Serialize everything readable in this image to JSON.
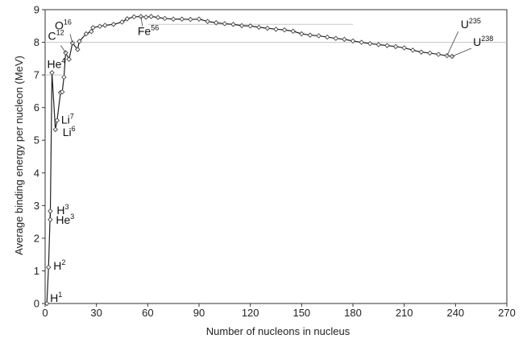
{
  "chart_data": {
    "type": "scatter",
    "title": "",
    "xlabel": "Number of nucleons in nucleus",
    "ylabel": "Average binding energy per nucleon (MeV)",
    "xlim": [
      0,
      270
    ],
    "ylim": [
      0,
      9
    ],
    "x_ticks": [
      "0",
      "30",
      "60",
      "90",
      "120",
      "150",
      "180",
      "210",
      "240",
      "270"
    ],
    "y_ticks": [
      "0",
      "1",
      "2",
      "3",
      "4",
      "5",
      "6",
      "7",
      "8",
      "9"
    ],
    "grid": false,
    "series": [
      {
        "points": [
          [
            1,
            0
          ],
          [
            2,
            1.11
          ],
          [
            3,
            2.83
          ],
          [
            3,
            2.57
          ],
          [
            4,
            7.07
          ],
          [
            6,
            5.33
          ],
          [
            7,
            5.61
          ],
          [
            9,
            6.46
          ],
          [
            10,
            6.48
          ],
          [
            11,
            6.93
          ],
          [
            12,
            7.68
          ],
          [
            14,
            7.48
          ],
          [
            16,
            7.98
          ],
          [
            19,
            7.78
          ],
          [
            20,
            8.03
          ],
          [
            24,
            8.26
          ],
          [
            27,
            8.33
          ],
          [
            28,
            8.45
          ],
          [
            32,
            8.49
          ],
          [
            35,
            8.52
          ],
          [
            40,
            8.55
          ],
          [
            45,
            8.62
          ],
          [
            48,
            8.72
          ],
          [
            52,
            8.78
          ],
          [
            56,
            8.79
          ],
          [
            59,
            8.77
          ],
          [
            62,
            8.79
          ],
          [
            66,
            8.76
          ],
          [
            70,
            8.73
          ],
          [
            75,
            8.71
          ],
          [
            80,
            8.71
          ],
          [
            85,
            8.7
          ],
          [
            90,
            8.71
          ],
          [
            95,
            8.64
          ],
          [
            100,
            8.6
          ],
          [
            105,
            8.57
          ],
          [
            110,
            8.55
          ],
          [
            115,
            8.51
          ],
          [
            120,
            8.5
          ],
          [
            125,
            8.46
          ],
          [
            130,
            8.43
          ],
          [
            135,
            8.4
          ],
          [
            140,
            8.38
          ],
          [
            145,
            8.34
          ],
          [
            150,
            8.26
          ],
          [
            155,
            8.22
          ],
          [
            160,
            8.2
          ],
          [
            165,
            8.16
          ],
          [
            170,
            8.12
          ],
          [
            175,
            8.09
          ],
          [
            180,
            8.04
          ],
          [
            185,
            8.0
          ],
          [
            190,
            7.96
          ],
          [
            195,
            7.93
          ],
          [
            200,
            7.9
          ],
          [
            205,
            7.87
          ],
          [
            210,
            7.83
          ],
          [
            215,
            7.76
          ],
          [
            220,
            7.7
          ],
          [
            225,
            7.67
          ],
          [
            230,
            7.63
          ],
          [
            235,
            7.59
          ],
          [
            238,
            7.57
          ]
        ]
      }
    ],
    "reference_lines": [
      {
        "y": 8.55,
        "x_from": 60,
        "x_to": 180
      },
      {
        "y": 8.0,
        "x_from": 0,
        "x_to": 270
      },
      {
        "y": 7.0,
        "x_from": 0,
        "x_to": 10
      }
    ],
    "annotations": [
      {
        "symbol": "H",
        "mass": "1",
        "x": 1,
        "y": 0
      },
      {
        "symbol": "H",
        "mass": "2",
        "x": 2,
        "y": 1.11
      },
      {
        "symbol": "H",
        "mass": "3",
        "x": 3,
        "y": 2.83
      },
      {
        "symbol": "He",
        "mass": "3",
        "x": 3,
        "y": 2.57
      },
      {
        "symbol": "He",
        "mass": "4",
        "x": 4,
        "y": 7.07
      },
      {
        "symbol": "Li",
        "mass": "7",
        "x": 7,
        "y": 5.61
      },
      {
        "symbol": "Li",
        "mass": "6",
        "x": 6,
        "y": 5.33
      },
      {
        "symbol": "C",
        "mass": "12",
        "x": 12,
        "y": 7.68
      },
      {
        "symbol": "O",
        "mass": "16",
        "x": 16,
        "y": 7.98
      },
      {
        "symbol": "Fe",
        "mass": "56",
        "x": 56,
        "y": 8.79
      },
      {
        "symbol": "U",
        "mass": "235",
        "x": 235,
        "y": 7.59
      },
      {
        "symbol": "U",
        "mass": "238",
        "x": 238,
        "y": 7.57
      }
    ]
  }
}
